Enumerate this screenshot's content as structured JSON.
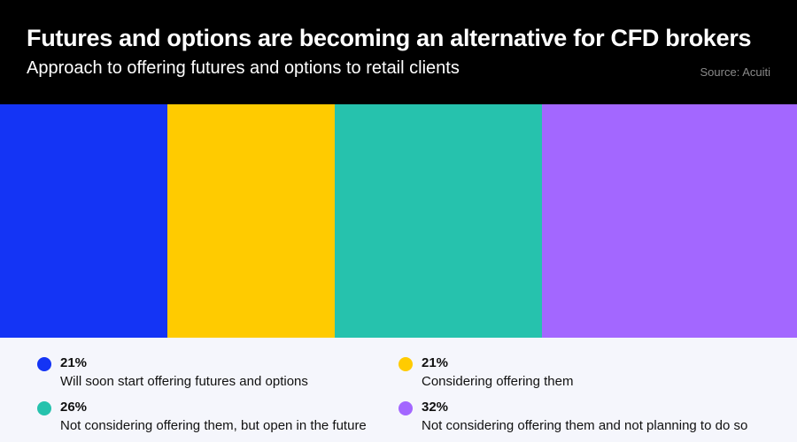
{
  "header": {
    "title": "Futures and options are becoming an alternative for CFD brokers",
    "subtitle": "Approach to offering futures and options to retail clients",
    "source": "Source: Acuiti"
  },
  "chart_data": {
    "type": "bar",
    "orientation": "stacked-horizontal-100",
    "title": "Futures and options are becoming an alternative for CFD brokers",
    "subtitle": "Approach to offering futures and options to retail clients",
    "legend_position": "bottom",
    "series": [
      {
        "name": "Will soon start offering futures and options",
        "value": 21,
        "label": "21%",
        "color": "#1434f5"
      },
      {
        "name": "Considering offering them",
        "value": 21,
        "label": "21%",
        "color": "#ffcb00"
      },
      {
        "name": "Not considering offering them, but open in the future",
        "value": 26,
        "label": "26%",
        "color": "#26c2ad"
      },
      {
        "name": "Not considering offering them and not planning to do so",
        "value": 32,
        "label": "32%",
        "color": "#a367ff"
      }
    ]
  }
}
